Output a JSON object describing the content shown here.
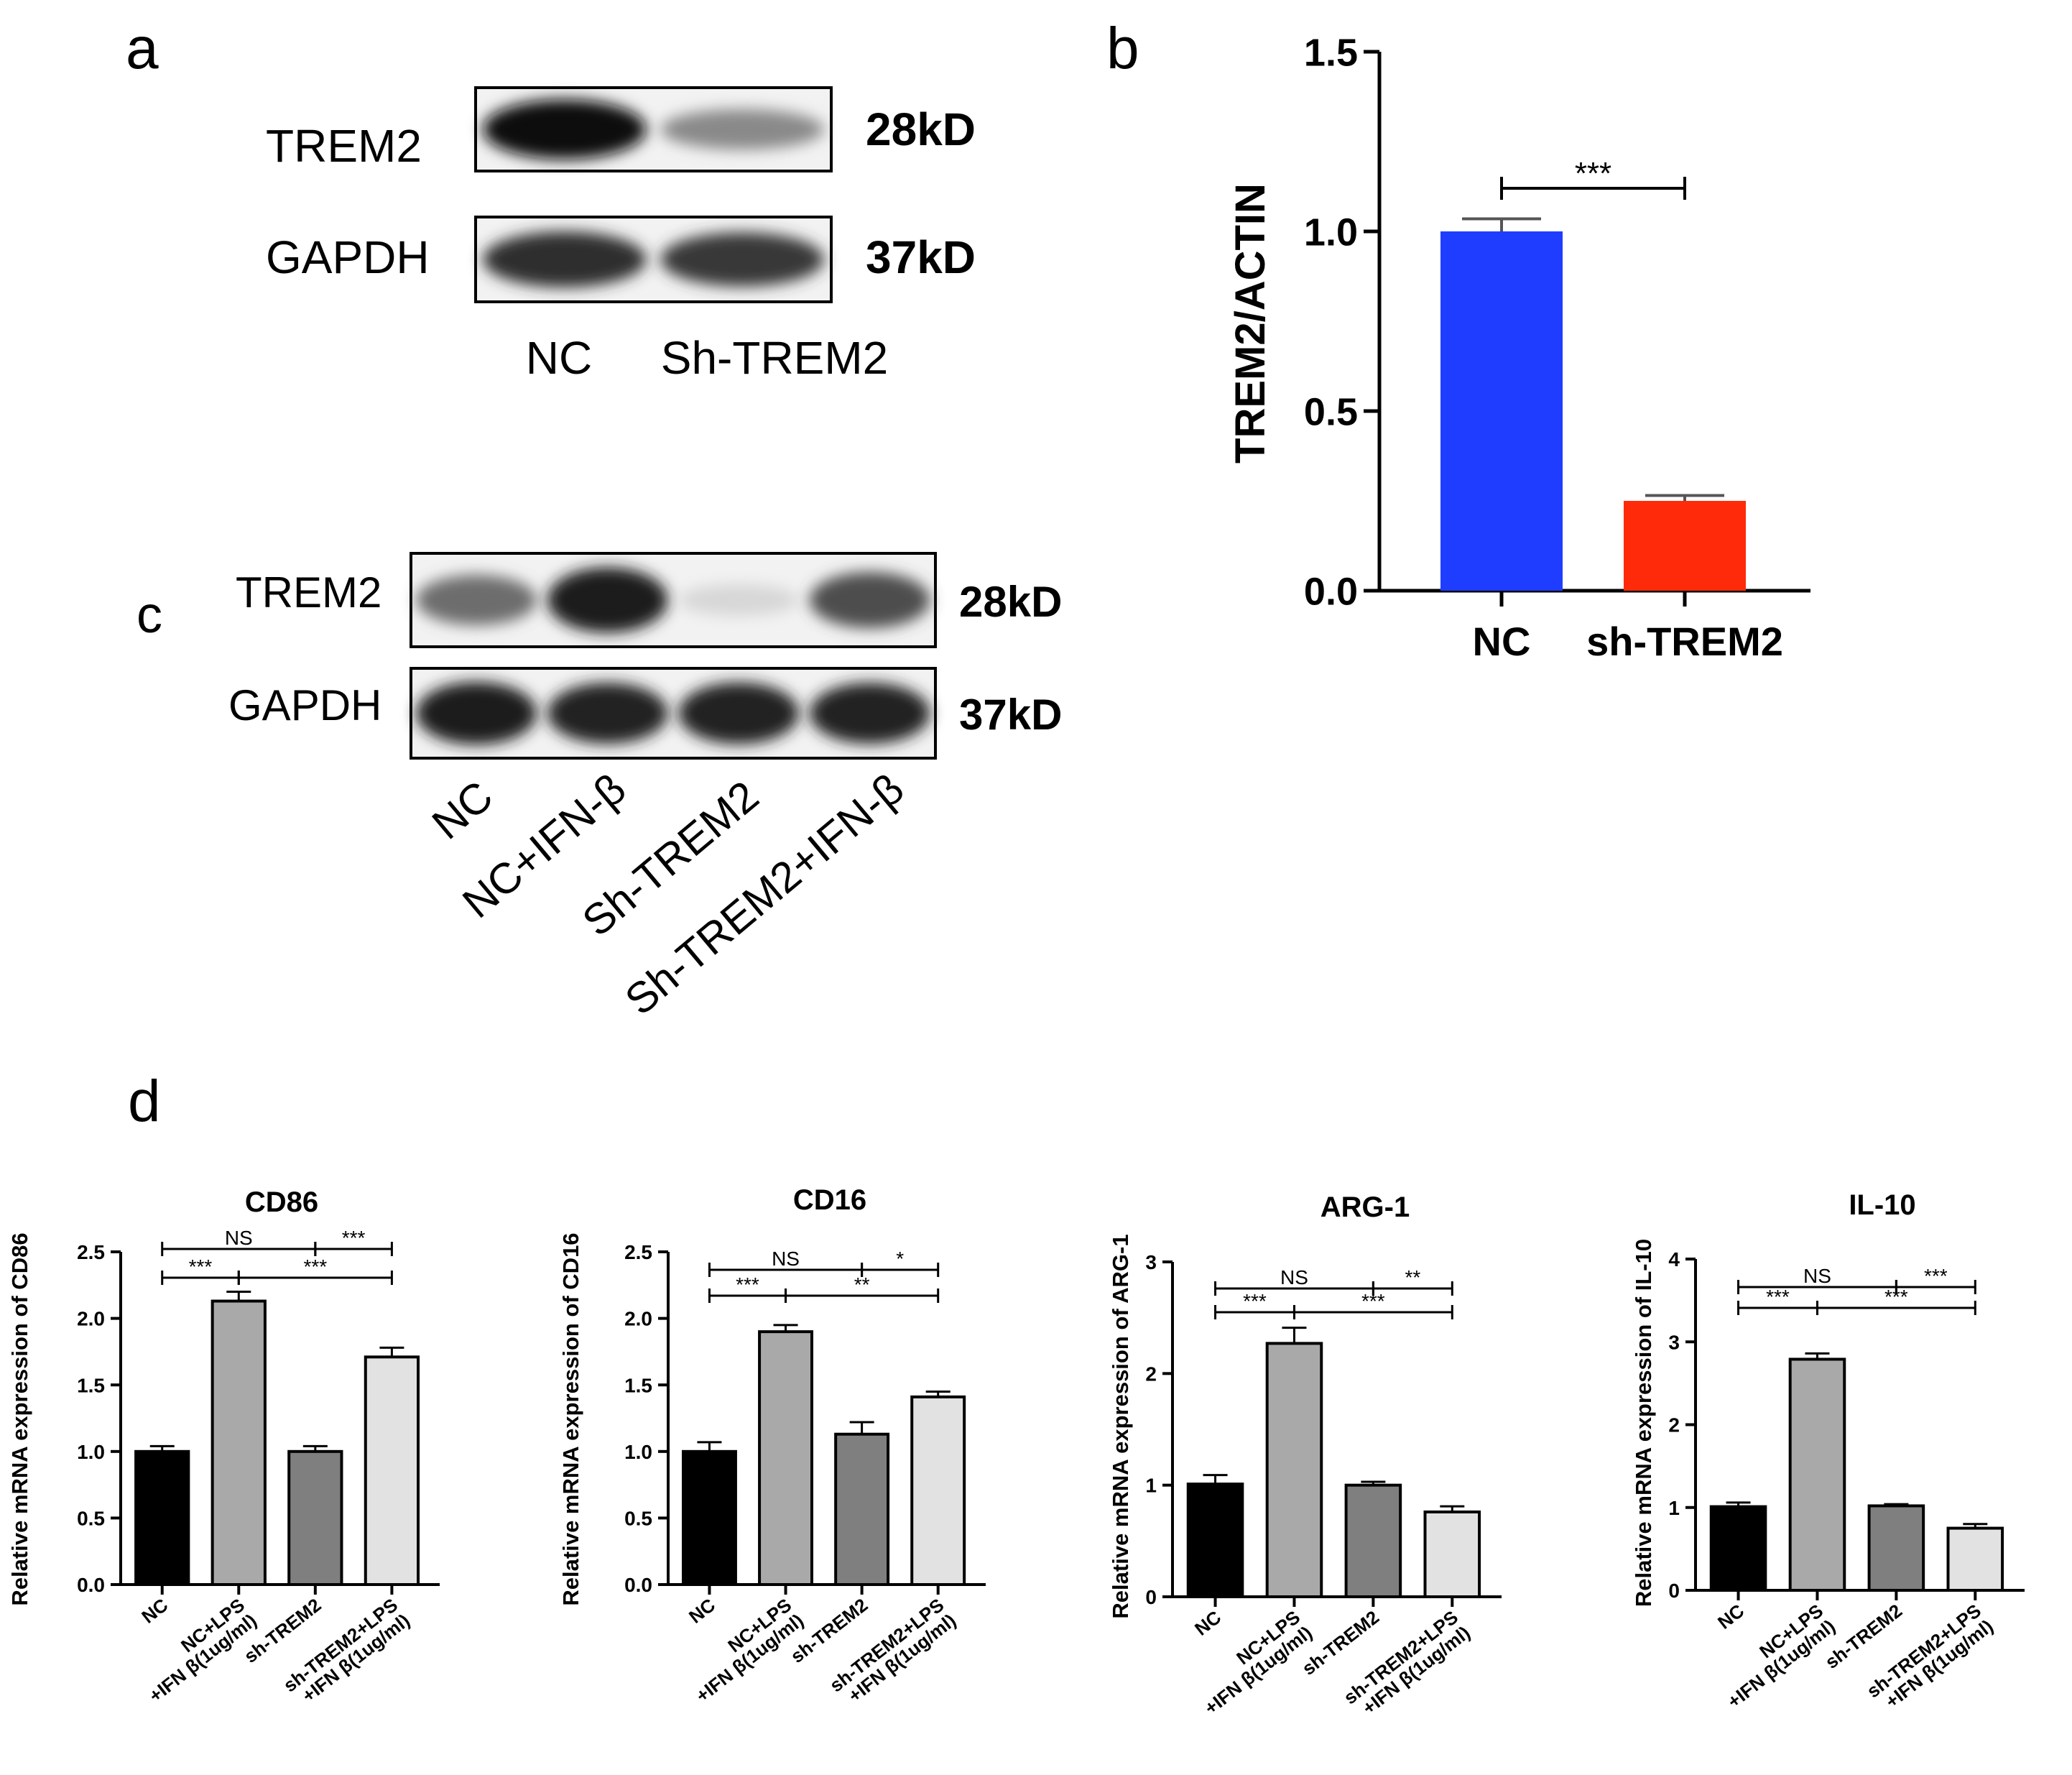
{
  "panels": {
    "a": {
      "letter": "a",
      "rows": [
        {
          "protein": "TREM2",
          "size": "28kD",
          "bands": [
            1.0,
            0.42
          ]
        },
        {
          "protein": "GAPDH",
          "size": "37kD",
          "bands": [
            0.85,
            0.8
          ]
        }
      ],
      "lanes": [
        "NC",
        "Sh-TREM2"
      ]
    },
    "c": {
      "letter": "c",
      "rows": [
        {
          "protein": "TREM2",
          "size": "28kD",
          "bands": [
            0.55,
            0.95,
            0.05,
            0.7
          ]
        },
        {
          "protein": "GAPDH",
          "size": "37kD",
          "bands": [
            0.95,
            0.9,
            0.92,
            0.9
          ]
        }
      ],
      "lanes": [
        "NC",
        "NC+IFN-β",
        "Sh-TREM2",
        "Sh-TREM2+IFN-β"
      ]
    },
    "d": {
      "letter": "d"
    }
  },
  "chart_data": [
    {
      "id": "b",
      "panel_letter": "b",
      "type": "bar",
      "title": "",
      "ylabel": "TREM2/ACTIN",
      "categories": [
        "NC",
        "sh-TREM2"
      ],
      "values": [
        1.0,
        0.25
      ],
      "errors": [
        0.035,
        0.015
      ],
      "colors": [
        "#1f3dff",
        "#ff2a0a"
      ],
      "ylim": [
        0,
        1.5
      ],
      "yticks": [
        "0.0",
        "0.5",
        "1.0",
        "1.5"
      ],
      "significance": [
        {
          "from": 0,
          "to": 1,
          "label": "***"
        }
      ]
    },
    {
      "id": "cd86",
      "type": "bar",
      "title": "CD86",
      "ylabel": "Relative mRNA expression of CD86",
      "categories": [
        "NC",
        "NC+LPS|+IFN β(1ug/ml)",
        "sh-TREM2",
        "sh-TREM2+LPS|+IFN β(1ug/ml)"
      ],
      "values": [
        1.0,
        2.13,
        1.0,
        1.71
      ],
      "errors": [
        0.04,
        0.07,
        0.04,
        0.07
      ],
      "colors": [
        "#000000",
        "#a9a9a9",
        "#7f7f7f",
        "#e2e2e2"
      ],
      "ylim": [
        0,
        2.5
      ],
      "yticks": [
        "0.0",
        "0.5",
        "1.0",
        "1.5",
        "2.0",
        "2.5"
      ],
      "significance": [
        {
          "from": 0,
          "to": 2,
          "label": "NS",
          "level": 1
        },
        {
          "from": 2,
          "to": 3,
          "label": "***",
          "level": 1
        },
        {
          "from": 0,
          "to": 1,
          "label": "***",
          "level": 0
        },
        {
          "from": 1,
          "to": 3,
          "label": "***",
          "level": 0
        }
      ]
    },
    {
      "id": "cd16",
      "type": "bar",
      "title": "CD16",
      "ylabel": "Relative mRNA expression of CD16",
      "categories": [
        "NC",
        "NC+LPS|+IFN β(1ug/ml)",
        "sh-TREM2",
        "sh-TREM2+LPS|+IFN β(1ug/ml)"
      ],
      "values": [
        1.0,
        1.9,
        1.13,
        1.41
      ],
      "errors": [
        0.07,
        0.05,
        0.09,
        0.04
      ],
      "colors": [
        "#000000",
        "#a9a9a9",
        "#7f7f7f",
        "#e2e2e2"
      ],
      "ylim": [
        0,
        2.5
      ],
      "yticks": [
        "0.0",
        "0.5",
        "1.0",
        "1.5",
        "2.0",
        "2.5"
      ],
      "significance": [
        {
          "from": 0,
          "to": 2,
          "label": "NS",
          "level": 1
        },
        {
          "from": 2,
          "to": 3,
          "label": "*",
          "level": 1
        },
        {
          "from": 0,
          "to": 1,
          "label": "***",
          "level": 0
        },
        {
          "from": 1,
          "to": 3,
          "label": "**",
          "level": 0
        }
      ]
    },
    {
      "id": "arg1",
      "type": "bar",
      "title": "ARG-1",
      "ylabel": "Relative mRNA expression of  ARG-1",
      "categories": [
        "NC",
        "NC+LPS|+IFN β(1ug/ml)",
        "sh-TREM2",
        "sh-TREM2+LPS|+IFN β(1ug/ml)"
      ],
      "values": [
        1.01,
        2.27,
        1.0,
        0.76
      ],
      "errors": [
        0.08,
        0.14,
        0.03,
        0.05
      ],
      "colors": [
        "#000000",
        "#a9a9a9",
        "#7f7f7f",
        "#e2e2e2"
      ],
      "ylim": [
        0,
        3
      ],
      "yticks": [
        "0",
        "1",
        "2",
        "3"
      ],
      "significance": [
        {
          "from": 0,
          "to": 2,
          "label": "NS",
          "level": 1
        },
        {
          "from": 2,
          "to": 3,
          "label": "**",
          "level": 1
        },
        {
          "from": 0,
          "to": 1,
          "label": "***",
          "level": 0
        },
        {
          "from": 1,
          "to": 3,
          "label": "***",
          "level": 0
        }
      ]
    },
    {
      "id": "il10",
      "type": "bar",
      "title": "IL-10",
      "ylabel": "Relative mRNA expression of  IL-10",
      "categories": [
        "NC",
        "NC+LPS|+IFN β(1ug/ml)",
        "sh-TREM2",
        "sh-TREM2+LPS|+IFN β(1ug/ml)"
      ],
      "values": [
        1.01,
        2.79,
        1.02,
        0.75
      ],
      "errors": [
        0.05,
        0.07,
        0.02,
        0.05
      ],
      "colors": [
        "#000000",
        "#a9a9a9",
        "#7f7f7f",
        "#e2e2e2"
      ],
      "ylim": [
        0,
        4
      ],
      "yticks": [
        "0",
        "1",
        "2",
        "3",
        "4"
      ],
      "significance": [
        {
          "from": 0,
          "to": 2,
          "label": "NS",
          "level": 1
        },
        {
          "from": 2,
          "to": 3,
          "label": "***",
          "level": 1
        },
        {
          "from": 0,
          "to": 1,
          "label": "***",
          "level": 0
        },
        {
          "from": 1,
          "to": 3,
          "label": "***",
          "level": 0
        }
      ]
    }
  ]
}
